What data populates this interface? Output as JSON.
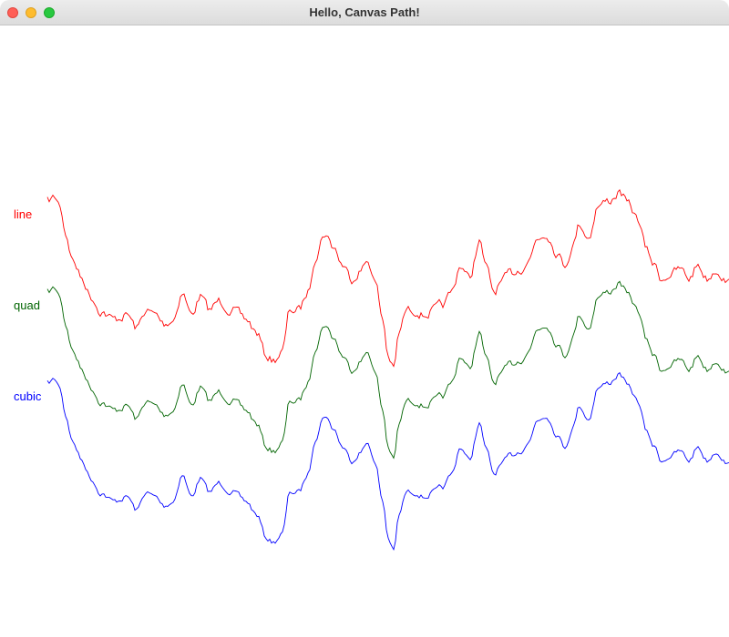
{
  "window": {
    "title": "Hello, Canvas Path!"
  },
  "paths": [
    {
      "name": "line",
      "color": "#ff0000"
    },
    {
      "name": "quad",
      "color": "#006400"
    },
    {
      "name": "cubic",
      "color": "#0000ff"
    }
  ]
}
